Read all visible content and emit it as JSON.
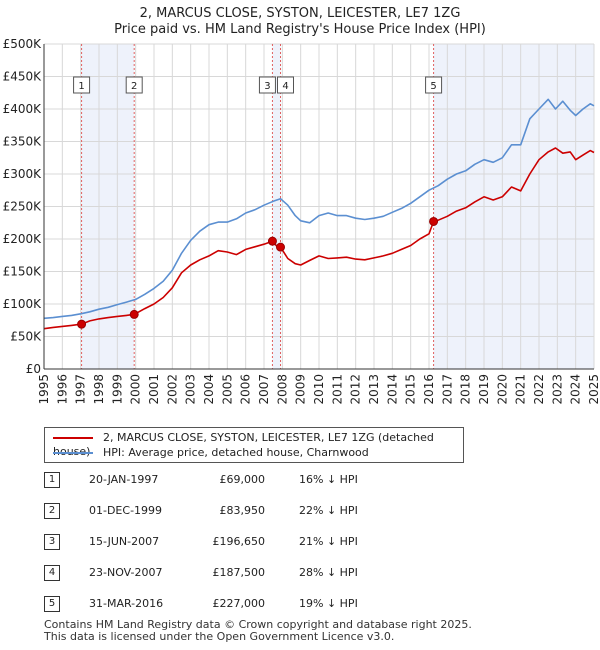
{
  "chart_data": {
    "type": "line",
    "title": "2, MARCUS CLOSE, SYSTON, LEICESTER, LE7 1ZG",
    "subtitle": "Price paid vs. HM Land Registry's House Price Index (HPI)",
    "xlabel": "",
    "ylabel": "",
    "xlim": [
      1995,
      2025
    ],
    "ylim": [
      0,
      500000
    ],
    "y_ticks": [
      0,
      50000,
      100000,
      150000,
      200000,
      250000,
      300000,
      350000,
      400000,
      450000,
      500000
    ],
    "y_tick_labels": [
      "£0",
      "£50K",
      "£100K",
      "£150K",
      "£200K",
      "£250K",
      "£300K",
      "£350K",
      "£400K",
      "£450K",
      "£500K"
    ],
    "x_ticks": [
      1995,
      1996,
      1997,
      1998,
      1999,
      2000,
      2001,
      2002,
      2003,
      2004,
      2005,
      2006,
      2007,
      2008,
      2009,
      2010,
      2011,
      2012,
      2013,
      2014,
      2015,
      2016,
      2017,
      2018,
      2019,
      2020,
      2021,
      2022,
      2023,
      2024,
      2025
    ],
    "grid": true,
    "colors": {
      "property": "#cc0000",
      "hpi": "#5b8fd1",
      "shade": "#eef2fb",
      "marker_line": "#e06060"
    },
    "series": [
      {
        "name": "2, MARCUS CLOSE, SYSTON, LEICESTER, LE7 1ZG (detached house)",
        "color": "#cc0000",
        "x": [
          1995.0,
          1995.5,
          1996.0,
          1996.5,
          1997.05,
          1997.5,
          1998.0,
          1998.5,
          1999.0,
          1999.5,
          1999.92,
          2000.5,
          2001.0,
          2001.5,
          2002.0,
          2002.5,
          2003.0,
          2003.5,
          2004.0,
          2004.5,
          2005.0,
          2005.5,
          2006.0,
          2006.5,
          2007.0,
          2007.46,
          2007.7,
          2007.9,
          2008.3,
          2008.7,
          2009.0,
          2009.5,
          2010.0,
          2010.5,
          2011.0,
          2011.5,
          2012.0,
          2012.5,
          2013.0,
          2013.5,
          2014.0,
          2014.5,
          2015.0,
          2015.5,
          2016.0,
          2016.25,
          2016.5,
          2017.0,
          2017.5,
          2018.0,
          2018.5,
          2019.0,
          2019.5,
          2020.0,
          2020.5,
          2021.0,
          2021.5,
          2022.0,
          2022.5,
          2022.9,
          2023.3,
          2023.7,
          2024.0,
          2024.4,
          2024.8,
          2025.0
        ],
        "values": [
          62000,
          64000,
          65500,
          67000,
          69000,
          74000,
          77000,
          79000,
          81000,
          82500,
          83950,
          93000,
          100000,
          110000,
          125000,
          148000,
          160000,
          168000,
          174000,
          182000,
          180000,
          176000,
          184000,
          188000,
          192000,
          196650,
          189000,
          187500,
          170000,
          162000,
          160000,
          167000,
          174000,
          170000,
          171000,
          172000,
          169000,
          168000,
          171000,
          174000,
          178000,
          184000,
          190000,
          200000,
          208000,
          227000,
          229000,
          235000,
          243000,
          248000,
          257000,
          265000,
          260000,
          265000,
          280000,
          274000,
          300000,
          322000,
          334000,
          340000,
          332000,
          334000,
          322000,
          329000,
          336000,
          333000
        ]
      },
      {
        "name": "HPI: Average price, detached house, Charnwood",
        "color": "#5b8fd1",
        "x": [
          1995.0,
          1995.5,
          1996.0,
          1996.5,
          1997.0,
          1997.5,
          1998.0,
          1998.5,
          1999.0,
          1999.5,
          2000.0,
          2000.5,
          2001.0,
          2001.5,
          2002.0,
          2002.5,
          2003.0,
          2003.5,
          2004.0,
          2004.5,
          2005.0,
          2005.5,
          2006.0,
          2006.5,
          2007.0,
          2007.5,
          2007.9,
          2008.3,
          2008.7,
          2009.0,
          2009.5,
          2010.0,
          2010.5,
          2011.0,
          2011.5,
          2012.0,
          2012.5,
          2013.0,
          2013.5,
          2014.0,
          2014.5,
          2015.0,
          2015.5,
          2016.0,
          2016.5,
          2017.0,
          2017.5,
          2018.0,
          2018.5,
          2019.0,
          2019.5,
          2020.0,
          2020.5,
          2021.0,
          2021.5,
          2022.0,
          2022.5,
          2022.9,
          2023.3,
          2023.7,
          2024.0,
          2024.4,
          2024.8,
          2025.0
        ],
        "values": [
          78000,
          79000,
          81000,
          82500,
          85000,
          88000,
          92000,
          95000,
          99000,
          103000,
          107000,
          115000,
          124000,
          135000,
          152000,
          178000,
          198000,
          212000,
          222000,
          226000,
          226000,
          231000,
          240000,
          245000,
          252000,
          258000,
          262000,
          252000,
          236000,
          228000,
          225000,
          236000,
          240000,
          236000,
          236000,
          232000,
          230000,
          232000,
          235000,
          241000,
          247000,
          255000,
          265000,
          275000,
          282000,
          292000,
          300000,
          305000,
          315000,
          322000,
          318000,
          325000,
          345000,
          345000,
          385000,
          400000,
          415000,
          400000,
          412000,
          398000,
          390000,
          400000,
          408000,
          405000
        ]
      }
    ],
    "sales": [
      {
        "num": "1",
        "x": 1997.05,
        "value": 69000,
        "date": "20-JAN-1997",
        "price": "£69,000",
        "hpi": "16% ↓ HPI"
      },
      {
        "num": "2",
        "x": 1999.92,
        "value": 83950,
        "date": "01-DEC-1999",
        "price": "£83,950",
        "hpi": "22% ↓ HPI"
      },
      {
        "num": "3",
        "x": 2007.46,
        "value": 196650,
        "date": "15-JUN-2007",
        "price": "£196,650",
        "hpi": "21% ↓ HPI"
      },
      {
        "num": "4",
        "x": 2007.9,
        "value": 187500,
        "date": "23-NOV-2007",
        "price": "£187,500",
        "hpi": "28% ↓ HPI"
      },
      {
        "num": "5",
        "x": 2016.25,
        "value": 227000,
        "date": "31-MAR-2016",
        "price": "£227,000",
        "hpi": "19% ↓ HPI"
      }
    ],
    "shaded_ranges": [
      [
        1997.05,
        1999.92
      ],
      [
        2007.46,
        2007.9
      ],
      [
        2016.25,
        2025.0
      ]
    ]
  },
  "legend": {
    "property_label": "2, MARCUS CLOSE, SYSTON, LEICESTER, LE7 1ZG (detached house)",
    "hpi_label": "HPI: Average price, detached house, Charnwood"
  },
  "footer": {
    "line1": "Contains HM Land Registry data © Crown copyright and database right 2025.",
    "line2": "This data is licensed under the Open Government Licence v3.0."
  }
}
